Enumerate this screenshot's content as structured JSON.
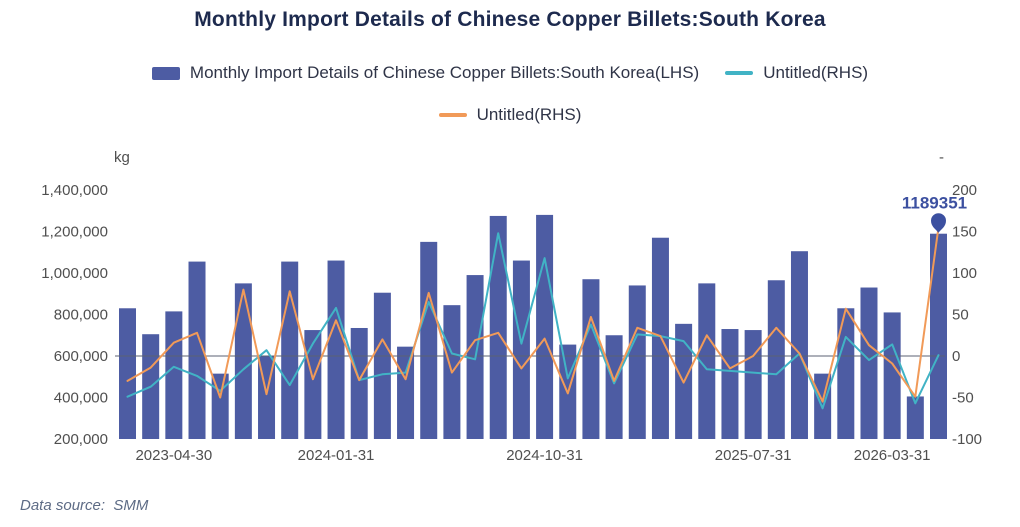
{
  "header": {
    "title": "Monthly Import Details of Chinese Copper Billets:South Korea"
  },
  "legend": {
    "items": [
      {
        "label": "Monthly Import Details of Chinese Copper Billets:South Korea(LHS)",
        "marker": "rect",
        "color": "#4d5ca3"
      },
      {
        "label": "Untitled(RHS)",
        "marker": "line",
        "color": "#41b3c5"
      },
      {
        "label": "Untitled(RHS)",
        "marker": "line",
        "color": "#f19a58"
      }
    ]
  },
  "axes": {
    "left_unit": "kg",
    "right_unit": "-",
    "left_tick_labels": [
      "200,000",
      "400,000",
      "600,000",
      "800,000",
      "1,000,000",
      "1,200,000",
      "1,400,000"
    ],
    "right_tick_labels": [
      "-100",
      "-50",
      "0",
      "50",
      "100",
      "150",
      "200"
    ],
    "x_labels": [
      "2023-04-30",
      "2024-01-31",
      "2024-10-31",
      "2025-07-31",
      "2026-03-31"
    ]
  },
  "annotation": {
    "text": "1189351"
  },
  "footer": {
    "text": "Data source:  SMM"
  },
  "chart_data": {
    "type": "combo",
    "title": "Monthly Import Details of Chinese Copper Billets:South Korea",
    "x_count": 36,
    "x_visible_labels": [
      {
        "index": 2,
        "label": "2023-04-30"
      },
      {
        "index": 9,
        "label": "2024-01-31"
      },
      {
        "index": 18,
        "label": "2024-10-31"
      },
      {
        "index": 27,
        "label": "2025-07-31"
      },
      {
        "index": 33,
        "label": "2026-03-31"
      }
    ],
    "left_axis": {
      "unit": "kg",
      "min": 200000,
      "max": 1400000,
      "step": 200000
    },
    "right_axis": {
      "unit": "-",
      "min": -100,
      "max": 200,
      "step": 50
    },
    "baseline": {
      "left_value": 600000,
      "right_value": 0
    },
    "grid_lines": false,
    "legend_position": "top",
    "series": [
      {
        "name": "Monthly Import Details of Chinese Copper Billets:South Korea(LHS)",
        "type": "bar",
        "axis": "left",
        "color": "#4d5ca3",
        "values": [
          830000,
          705000,
          815000,
          1055000,
          515000,
          950000,
          600000,
          1055000,
          725000,
          1060000,
          735000,
          905000,
          645000,
          1150000,
          845000,
          990000,
          1275000,
          1060000,
          1280000,
          655000,
          970000,
          700000,
          940000,
          1170000,
          755000,
          950000,
          730000,
          725000,
          965000,
          1105000,
          515000,
          830000,
          930000,
          810000,
          405000,
          1189351
        ]
      },
      {
        "name": "Untitled(RHS)",
        "type": "line",
        "axis": "right",
        "color": "#41b3c5",
        "values": [
          -49,
          -37,
          -13,
          -24,
          -42,
          -16,
          7,
          -35,
          15,
          58,
          -29,
          -22,
          -20,
          65,
          3,
          -4,
          148,
          15,
          118,
          -27,
          38,
          -33,
          26,
          24,
          18,
          -16,
          -18,
          -20,
          -22,
          3,
          -63,
          23,
          -5,
          14,
          -57,
          1
        ]
      },
      {
        "name": "Untitled(RHS)",
        "type": "line",
        "axis": "right",
        "color": "#f19a58",
        "values": [
          -30,
          -14,
          16,
          28,
          -50,
          80,
          -46,
          78,
          -28,
          43,
          -29,
          20,
          -28,
          76,
          -20,
          19,
          28,
          -15,
          21,
          -45,
          47,
          -30,
          34,
          24,
          -32,
          25,
          -15,
          0,
          34,
          3,
          -55,
          57,
          13,
          -9,
          -49,
          155
        ]
      }
    ],
    "annotation": {
      "text": "1189351",
      "value": 1189351,
      "series_index": 0,
      "point_index": 35,
      "color": "#3c50a0"
    }
  }
}
